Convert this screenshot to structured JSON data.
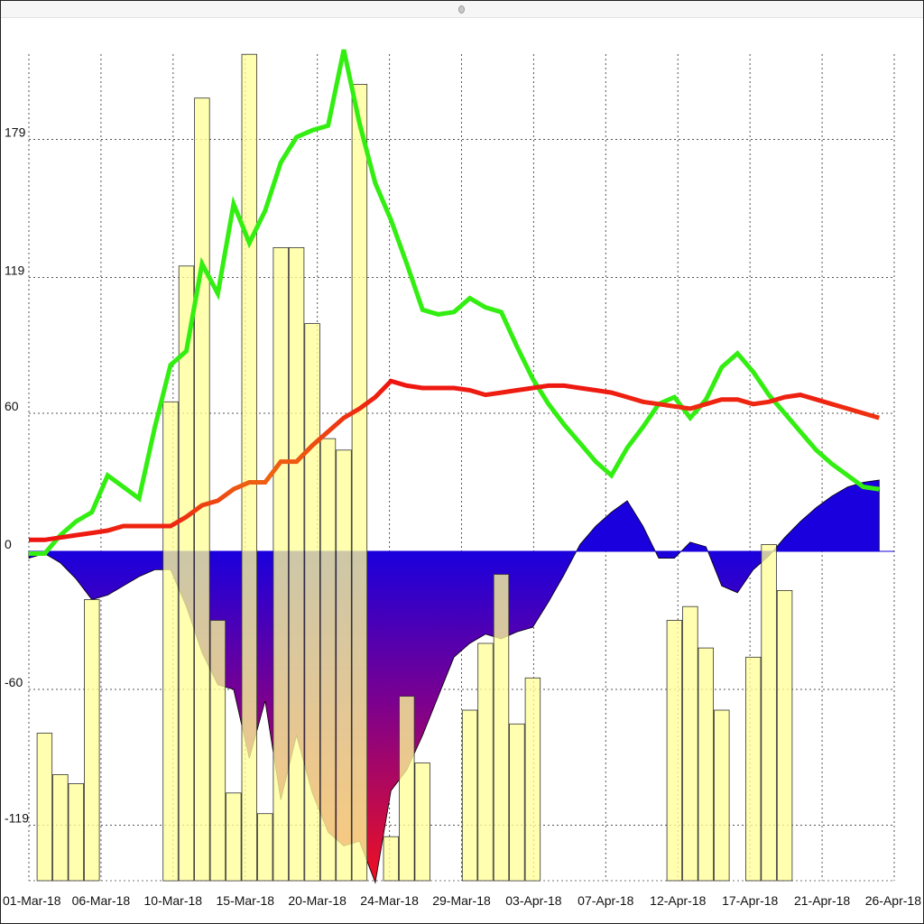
{
  "chart_data": {
    "type": "bar",
    "x_tick_labels": [
      "01-Mar-18",
      "06-Mar-18",
      "10-Mar-18",
      "15-Mar-18",
      "20-Mar-18",
      "24-Mar-18",
      "29-Mar-18",
      "03-Apr-18",
      "07-Apr-18",
      "12-Apr-18",
      "17-Apr-18",
      "21-Apr-18",
      "26-Apr-18"
    ],
    "y_tick_labels": [
      "179",
      "119",
      "60",
      "0",
      "-60",
      "-119"
    ],
    "ylim": [
      -143,
      220
    ],
    "grid": true,
    "colors": {
      "bars": "#ffff99",
      "bar_border": "#555555",
      "series_a": "#33ee11",
      "series_b": "#ee1111",
      "area_positive": "#1a00dd",
      "area_negative_deep": "#ee1122"
    },
    "bars": [
      null,
      -79,
      -97,
      -101,
      -21,
      null,
      null,
      null,
      null,
      65,
      124,
      197,
      -30,
      -105,
      216,
      -114,
      132,
      132,
      99,
      49,
      44,
      203,
      null,
      -124,
      -63,
      -92,
      null,
      null,
      -69,
      -40,
      -10,
      -75,
      -55,
      null,
      null,
      null,
      null,
      null,
      null,
      null,
      null,
      -30,
      -24,
      -42,
      -69,
      null,
      -46,
      3,
      -17,
      null,
      null,
      null,
      null,
      null,
      null
    ],
    "series": [
      {
        "values": [
          -1,
          -1,
          7,
          13,
          17,
          33,
          28,
          23,
          54,
          81,
          87,
          125,
          112,
          151,
          134,
          148,
          169,
          180,
          183,
          185,
          218,
          186,
          160,
          144,
          125,
          105,
          103,
          104,
          110,
          106,
          104,
          89,
          75,
          64,
          55,
          47,
          39,
          33,
          45,
          54,
          64,
          67,
          58,
          66,
          80,
          86,
          78,
          68,
          60,
          52,
          44,
          38,
          33,
          28,
          27
        ]
      },
      {
        "values": [
          5,
          5,
          6,
          7,
          8,
          9,
          11,
          11,
          11,
          11,
          15,
          20,
          22,
          27,
          30,
          30,
          39,
          39,
          46,
          52,
          58,
          62,
          67,
          74,
          72,
          71,
          71,
          71,
          70,
          68,
          69,
          70,
          71,
          72,
          72,
          71,
          70,
          69,
          67,
          65,
          64,
          63,
          62,
          64,
          66,
          66,
          64,
          65,
          67,
          68,
          66,
          64,
          62,
          60,
          58
        ]
      },
      {
        "values": [
          -3,
          -1,
          -5,
          -12,
          -21,
          -19,
          -15,
          -11,
          -8,
          -8,
          -24,
          -44,
          -58,
          -60,
          -90,
          -65,
          -108,
          -80,
          -105,
          -122,
          -128,
          -126,
          -144,
          -104,
          -95,
          -80,
          -63,
          -46,
          -40,
          -36,
          -38,
          -35,
          -33,
          -22,
          -10,
          3,
          11,
          17,
          22,
          11,
          -3,
          -3,
          4,
          2,
          -15,
          -18,
          -8,
          -2,
          6,
          13,
          19,
          24,
          28,
          30,
          31
        ]
      }
    ]
  }
}
